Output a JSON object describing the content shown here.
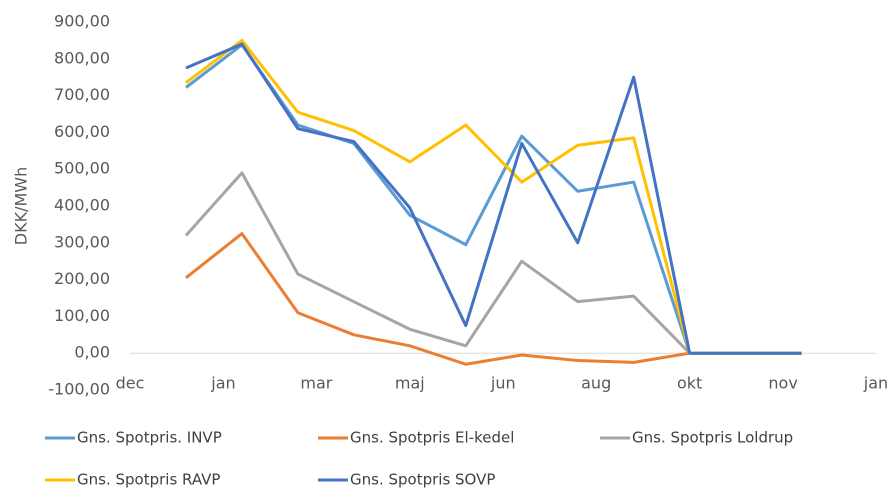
{
  "chart_data": {
    "type": "line",
    "y_label": "DKK/MWh",
    "x": [
      1,
      2,
      3,
      4,
      5,
      6,
      7,
      8,
      9,
      10,
      11,
      12
    ],
    "xlim": [
      0,
      13.33
    ],
    "xticks": [
      {
        "value": 0,
        "label": "dec"
      },
      {
        "value": 1.67,
        "label": "jan"
      },
      {
        "value": 3.33,
        "label": "mar"
      },
      {
        "value": 5,
        "label": "maj"
      },
      {
        "value": 6.67,
        "label": "jun"
      },
      {
        "value": 8.33,
        "label": "aug"
      },
      {
        "value": 10,
        "label": "okt"
      },
      {
        "value": 11.67,
        "label": "nov"
      },
      {
        "value": 13.33,
        "label": "jan"
      }
    ],
    "ylim": [
      -100,
      900
    ],
    "yticks": [
      {
        "value": -100,
        "label": "-100,00"
      },
      {
        "value": 0,
        "label": "0,00"
      },
      {
        "value": 100,
        "label": "100,00"
      },
      {
        "value": 200,
        "label": "200,00"
      },
      {
        "value": 300,
        "label": "300,00"
      },
      {
        "value": 400,
        "label": "400,00"
      },
      {
        "value": 500,
        "label": "500,00"
      },
      {
        "value": 600,
        "label": "600,00"
      },
      {
        "value": 700,
        "label": "700,00"
      },
      {
        "value": 800,
        "label": "800,00"
      },
      {
        "value": 900,
        "label": "900,00"
      }
    ],
    "grid": false,
    "legend": "bottom",
    "series": [
      {
        "name": "Gns. Spotpris. INVP",
        "color": "#5b9bd5",
        "values": [
          722,
          838,
          620,
          570,
          375,
          295,
          590,
          440,
          465,
          0,
          0,
          0
        ]
      },
      {
        "name": "Gns. Spotpris El-kedel",
        "color": "#ed7d31",
        "values": [
          205,
          325,
          110,
          50,
          20,
          -30,
          -5,
          -20,
          -25,
          0,
          0,
          0
        ]
      },
      {
        "name": "Gns. Spotpris Loldrup",
        "color": "#a5a5a5",
        "values": [
          320,
          490,
          215,
          140,
          65,
          20,
          250,
          140,
          155,
          0,
          0,
          0
        ]
      },
      {
        "name": "Gns. Spotpris RAVP",
        "color": "#ffc000",
        "values": [
          735,
          850,
          655,
          605,
          520,
          620,
          465,
          565,
          585,
          0,
          0,
          0
        ]
      },
      {
        "name": "Gns. Spotpris SOVP",
        "color": "#4472c4",
        "values": [
          775,
          840,
          610,
          575,
          395,
          75,
          570,
          300,
          750,
          0,
          0,
          0
        ]
      }
    ]
  }
}
